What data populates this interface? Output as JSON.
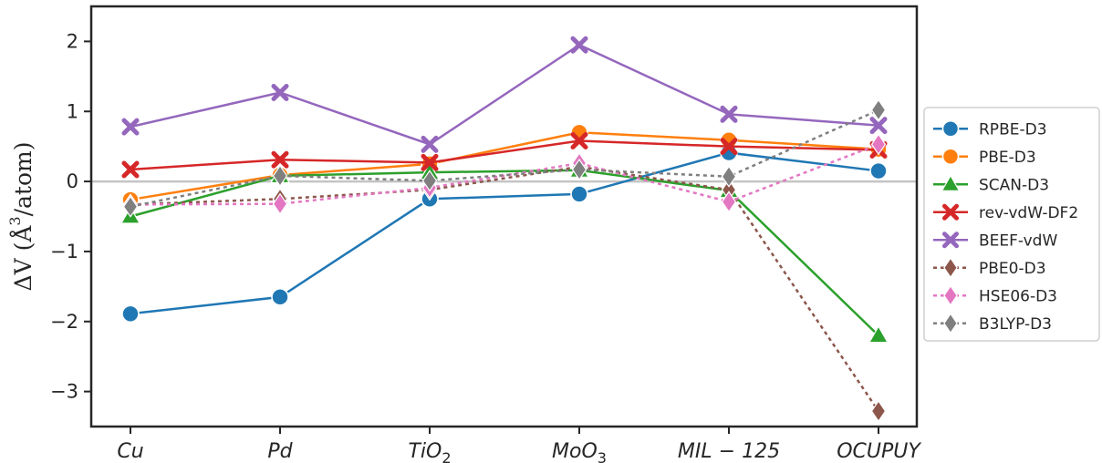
{
  "chart_data": {
    "type": "line",
    "categories": [
      "Cu",
      "Pd",
      "TiO2",
      "MoO3",
      "MIL−125",
      "OCUPUY"
    ],
    "category_labels": [
      {
        "base": "Cu",
        "sub": ""
      },
      {
        "base": "Pd",
        "sub": ""
      },
      {
        "base": "TiO",
        "sub": "2"
      },
      {
        "base": "MoO",
        "sub": "3"
      },
      {
        "base": "MIL − 125",
        "sub": ""
      },
      {
        "base": "OCUPUY",
        "sub": ""
      }
    ],
    "ylabel": "ΔV (Å³/atom)",
    "ylabel_parts": {
      "delta": "ΔV (",
      "angstrom": "Å",
      "sup": "3",
      "rest": "/atom)"
    },
    "ylim": [
      -3.5,
      2.5
    ],
    "yticks": [
      2,
      1,
      0,
      -1,
      -2,
      -3
    ],
    "ytick_labels": [
      "2",
      "1",
      "0",
      "−1",
      "−2",
      "−3"
    ],
    "zero_line": true,
    "grid": false,
    "legend_position": "right, outside plot",
    "series": [
      {
        "name": "RPBE-D3",
        "color": "#1f77b4",
        "marker": "circle",
        "dash": false,
        "values": [
          -1.89,
          -1.65,
          -0.25,
          -0.18,
          0.41,
          0.15
        ]
      },
      {
        "name": "PBE-D3",
        "color": "#ff7f0e",
        "marker": "circle",
        "dash": false,
        "values": [
          -0.26,
          0.09,
          0.25,
          0.7,
          0.59,
          0.46
        ]
      },
      {
        "name": "SCAN-D3",
        "color": "#2ca02c",
        "marker": "triangle",
        "dash": false,
        "values": [
          -0.5,
          0.08,
          0.13,
          0.16,
          -0.13,
          -2.2
        ]
      },
      {
        "name": "rev-vdW-DF2",
        "color": "#d62728",
        "marker": "x",
        "dash": false,
        "values": [
          0.17,
          0.31,
          0.27,
          0.58,
          0.5,
          0.45
        ]
      },
      {
        "name": "BEEF-vdW",
        "color": "#9467bd",
        "marker": "x",
        "dash": false,
        "values": [
          0.78,
          1.27,
          0.53,
          1.95,
          0.96,
          0.8
        ]
      },
      {
        "name": "PBE0-D3",
        "color": "#8c564b",
        "marker": "diamond",
        "dash": true,
        "values": [
          -0.33,
          -0.25,
          -0.12,
          0.21,
          -0.12,
          -3.28
        ]
      },
      {
        "name": "HSE06-D3",
        "color": "#e377c2",
        "marker": "diamond",
        "dash": true,
        "values": [
          -0.33,
          -0.32,
          -0.09,
          0.26,
          -0.29,
          0.53
        ]
      },
      {
        "name": "B3LYP-D3",
        "color": "#7f7f7f",
        "marker": "diamond",
        "dash": true,
        "values": [
          -0.36,
          0.08,
          0.01,
          0.17,
          0.07,
          1.02
        ]
      }
    ]
  }
}
